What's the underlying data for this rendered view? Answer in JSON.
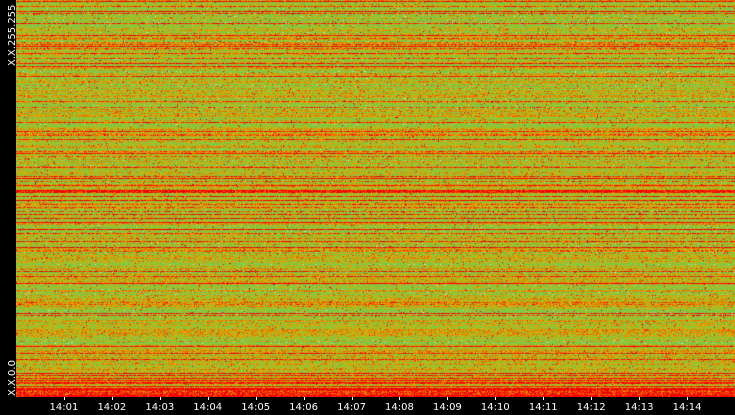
{
  "chart_data": {
    "type": "heatmap",
    "title": "",
    "xlabel": "",
    "ylabel": "",
    "y_axis": {
      "top_label": "X.X.255.255",
      "bottom_label": "X.X.0.0"
    },
    "x_ticks": [
      "14:01",
      "14:02",
      "14:03",
      "14:04",
      "14:05",
      "14:06",
      "14:07",
      "14:08",
      "14:09",
      "14:10",
      "14:11",
      "14:12",
      "14:13",
      "14:14"
    ],
    "x_range": [
      "14:00",
      "14:15"
    ],
    "y_range": [
      0,
      65535
    ],
    "color_scale": [
      "#78c850",
      "#98c828",
      "#e8a000",
      "#f06000",
      "#f00000"
    ],
    "grid": false,
    "legend": "none"
  },
  "colors": {
    "background": "#000000",
    "axis_text": "#ffffff"
  }
}
